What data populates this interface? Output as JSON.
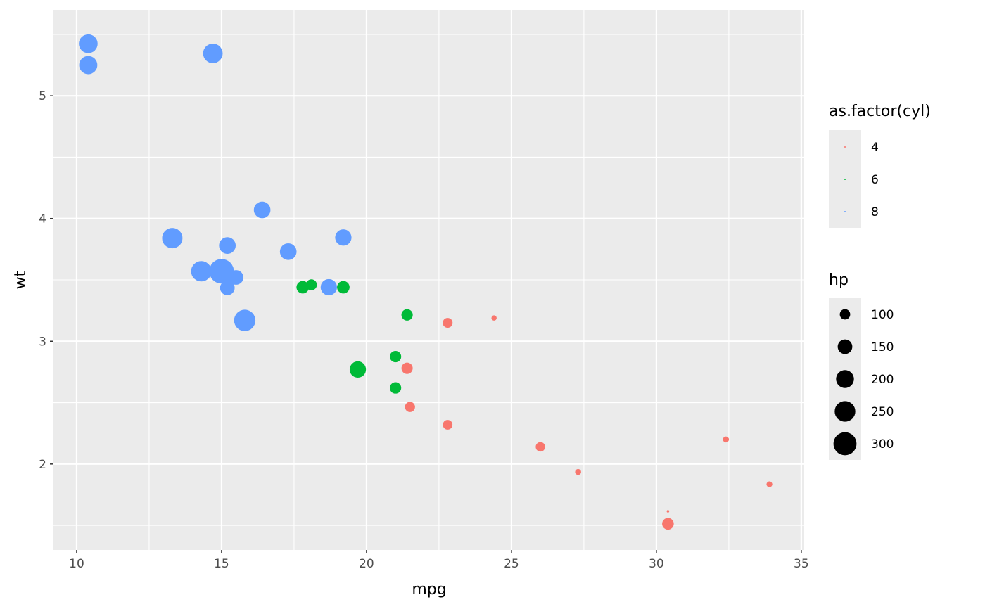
{
  "chart_data": {
    "type": "scatter",
    "xlabel": "mpg",
    "ylabel": "wt",
    "xlim": [
      9.2,
      35.1
    ],
    "ylim": [
      1.3,
      5.7
    ],
    "x_ticks": [
      10,
      15,
      20,
      25,
      30,
      35
    ],
    "y_ticks": [
      2,
      3,
      4,
      5
    ],
    "grid": true,
    "panel_background": "#ebebeb",
    "color_legend": {
      "title": "as.factor(cyl)",
      "entries": [
        {
          "label": "4",
          "color": "#f8766d"
        },
        {
          "label": "6",
          "color": "#00ba38"
        },
        {
          "label": "8",
          "color": "#619cff"
        }
      ]
    },
    "size_legend": {
      "title": "hp",
      "entries": [
        {
          "label": "100",
          "value": 100
        },
        {
          "label": "150",
          "value": 150
        },
        {
          "label": "200",
          "value": 200
        },
        {
          "label": "250",
          "value": 250
        },
        {
          "label": "300",
          "value": 300
        }
      ]
    },
    "points": [
      {
        "mpg": 21.0,
        "wt": 2.62,
        "cyl": "6",
        "hp": 110
      },
      {
        "mpg": 21.0,
        "wt": 2.875,
        "cyl": "6",
        "hp": 110
      },
      {
        "mpg": 22.8,
        "wt": 2.32,
        "cyl": "4",
        "hp": 93
      },
      {
        "mpg": 21.4,
        "wt": 3.215,
        "cyl": "6",
        "hp": 110
      },
      {
        "mpg": 18.7,
        "wt": 3.44,
        "cyl": "8",
        "hp": 175
      },
      {
        "mpg": 18.1,
        "wt": 3.46,
        "cyl": "6",
        "hp": 105
      },
      {
        "mpg": 14.3,
        "wt": 3.57,
        "cyl": "8",
        "hp": 245
      },
      {
        "mpg": 24.4,
        "wt": 3.19,
        "cyl": "4",
        "hp": 62
      },
      {
        "mpg": 22.8,
        "wt": 3.15,
        "cyl": "4",
        "hp": 95
      },
      {
        "mpg": 19.2,
        "wt": 3.44,
        "cyl": "6",
        "hp": 123
      },
      {
        "mpg": 17.8,
        "wt": 3.44,
        "cyl": "6",
        "hp": 123
      },
      {
        "mpg": 16.4,
        "wt": 4.07,
        "cyl": "8",
        "hp": 180
      },
      {
        "mpg": 17.3,
        "wt": 3.73,
        "cyl": "8",
        "hp": 180
      },
      {
        "mpg": 15.2,
        "wt": 3.78,
        "cyl": "8",
        "hp": 180
      },
      {
        "mpg": 10.4,
        "wt": 5.25,
        "cyl": "8",
        "hp": 205
      },
      {
        "mpg": 10.4,
        "wt": 5.424,
        "cyl": "8",
        "hp": 215
      },
      {
        "mpg": 14.7,
        "wt": 5.345,
        "cyl": "8",
        "hp": 230
      },
      {
        "mpg": 32.4,
        "wt": 2.2,
        "cyl": "4",
        "hp": 66
      },
      {
        "mpg": 30.4,
        "wt": 1.615,
        "cyl": "4",
        "hp": 52
      },
      {
        "mpg": 33.9,
        "wt": 1.835,
        "cyl": "4",
        "hp": 65
      },
      {
        "mpg": 21.5,
        "wt": 2.465,
        "cyl": "4",
        "hp": 97
      },
      {
        "mpg": 15.5,
        "wt": 3.52,
        "cyl": "8",
        "hp": 150
      },
      {
        "mpg": 15.2,
        "wt": 3.435,
        "cyl": "8",
        "hp": 150
      },
      {
        "mpg": 13.3,
        "wt": 3.84,
        "cyl": "8",
        "hp": 245
      },
      {
        "mpg": 19.2,
        "wt": 3.845,
        "cyl": "8",
        "hp": 175
      },
      {
        "mpg": 27.3,
        "wt": 1.935,
        "cyl": "4",
        "hp": 66
      },
      {
        "mpg": 26.0,
        "wt": 2.14,
        "cyl": "4",
        "hp": 91
      },
      {
        "mpg": 30.4,
        "wt": 1.513,
        "cyl": "4",
        "hp": 113
      },
      {
        "mpg": 15.8,
        "wt": 3.17,
        "cyl": "8",
        "hp": 264
      },
      {
        "mpg": 19.7,
        "wt": 2.77,
        "cyl": "6",
        "hp": 175
      },
      {
        "mpg": 15.0,
        "wt": 3.57,
        "cyl": "8",
        "hp": 335
      },
      {
        "mpg": 21.4,
        "wt": 2.78,
        "cyl": "4",
        "hp": 109
      }
    ]
  }
}
